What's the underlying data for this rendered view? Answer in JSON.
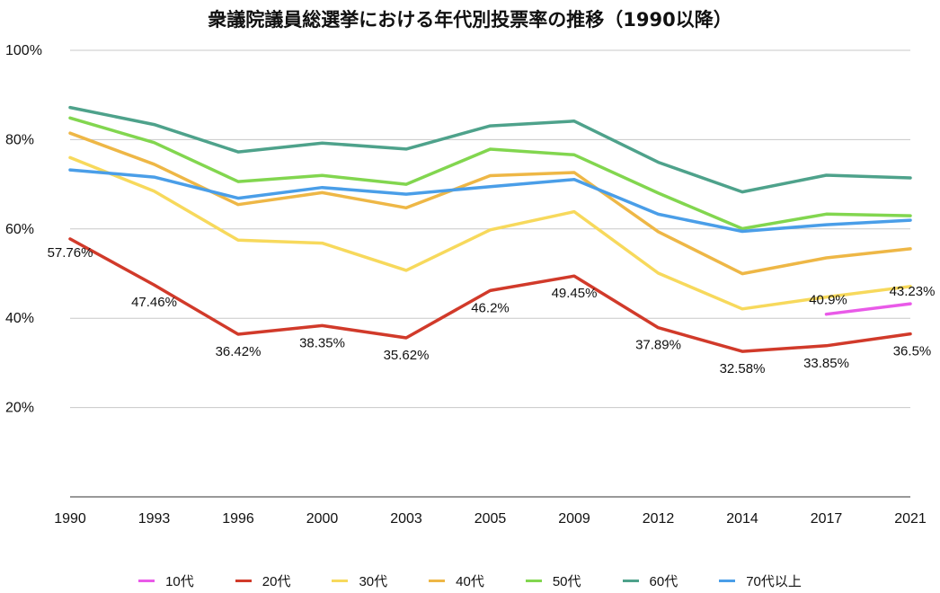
{
  "chart_data": {
    "type": "line",
    "title": "衆議院議員総選挙における年代別投票率の推移（1990以降）",
    "xlabel": "",
    "ylabel": "",
    "categories": [
      "1990",
      "1993",
      "1996",
      "2000",
      "2003",
      "2005",
      "2009",
      "2012",
      "2014",
      "2017",
      "2021"
    ],
    "ylim": [
      0,
      100
    ],
    "yticks": [
      20,
      40,
      60,
      80,
      100
    ],
    "ytick_labels": [
      "20%",
      "40%",
      "60%",
      "80%",
      "100%"
    ],
    "grid": true,
    "legend_position": "bottom",
    "series": [
      {
        "name": "10代",
        "color": "#e95ae8",
        "values": [
          null,
          null,
          null,
          null,
          null,
          null,
          null,
          null,
          null,
          40.9,
          43.23
        ]
      },
      {
        "name": "20代",
        "color": "#d13a2a",
        "values": [
          57.76,
          47.46,
          36.42,
          38.35,
          35.62,
          46.2,
          49.45,
          37.89,
          32.58,
          33.85,
          36.5
        ]
      },
      {
        "name": "30代",
        "color": "#f7d95c",
        "values": [
          75.97,
          68.46,
          57.49,
          56.82,
          50.72,
          59.79,
          63.87,
          50.1,
          42.09,
          44.75,
          47.12
        ]
      },
      {
        "name": "40代",
        "color": "#eeb746",
        "values": [
          81.44,
          74.48,
          65.46,
          68.13,
          64.72,
          71.94,
          72.63,
          59.38,
          49.98,
          53.52,
          55.56
        ]
      },
      {
        "name": "50代",
        "color": "#82d64f",
        "values": [
          84.85,
          79.34,
          70.61,
          71.98,
          70.01,
          77.86,
          76.6,
          68.02,
          60.07,
          63.32,
          62.96
        ]
      },
      {
        "name": "60代",
        "color": "#4ea28b",
        "values": [
          87.21,
          83.38,
          77.25,
          79.23,
          77.89,
          83.08,
          84.15,
          74.93,
          68.28,
          72.04,
          71.43
        ]
      },
      {
        "name": "70代以上",
        "color": "#4a9ee8",
        "values": [
          73.21,
          71.61,
          66.88,
          69.28,
          67.78,
          69.48,
          71.06,
          63.3,
          59.46,
          60.94,
          61.96
        ]
      }
    ],
    "data_labels": [
      {
        "series": "20代",
        "index": 0,
        "text": "57.76%"
      },
      {
        "series": "20代",
        "index": 1,
        "text": "47.46%"
      },
      {
        "series": "20代",
        "index": 2,
        "text": "36.42%"
      },
      {
        "series": "20代",
        "index": 3,
        "text": "38.35%"
      },
      {
        "series": "20代",
        "index": 4,
        "text": "35.62%"
      },
      {
        "series": "20代",
        "index": 5,
        "text": "46.2%"
      },
      {
        "series": "20代",
        "index": 6,
        "text": "49.45%"
      },
      {
        "series": "20代",
        "index": 7,
        "text": "37.89%"
      },
      {
        "series": "20代",
        "index": 8,
        "text": "32.58%"
      },
      {
        "series": "20代",
        "index": 9,
        "text": "33.85%"
      },
      {
        "series": "20代",
        "index": 10,
        "text": "36.5%"
      },
      {
        "series": "10代",
        "index": 9,
        "text": "40.9%"
      },
      {
        "series": "10代",
        "index": 10,
        "text": "43.23%"
      }
    ]
  }
}
